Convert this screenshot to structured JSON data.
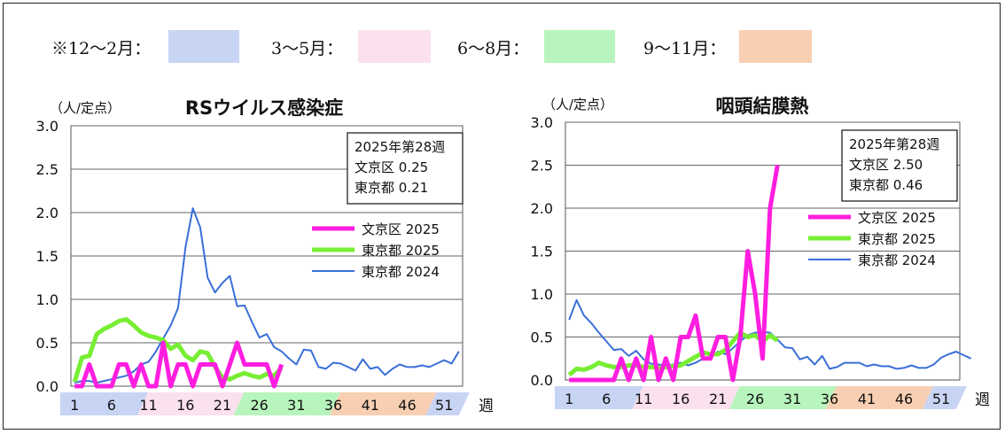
{
  "season_legend": [
    {
      "label": "※12～2月：",
      "color": "#c8d4f4"
    },
    {
      "label": "3～5月：",
      "color": "#fbe0ee"
    },
    {
      "label": "6～8月：",
      "color": "#b8f5bc"
    },
    {
      "label": "9～11月：",
      "color": "#f8cfb2"
    }
  ],
  "colors": {
    "bunkyo_2025": "#ff1ee0",
    "tokyo_2025": "#77ee33",
    "tokyo_2024": "#3a6fd8",
    "season_winter": "#c8d4f4",
    "season_spring": "#fbe0ee",
    "season_summer": "#b8f5bc",
    "season_autumn": "#f8cfb2"
  },
  "week_unit": "週",
  "week_ticks": [
    "1",
    "6",
    "11",
    "16",
    "21",
    "26",
    "31",
    "36",
    "41",
    "46",
    "51"
  ],
  "chart_data": [
    {
      "type": "line",
      "title": "RSウイルス感染症",
      "ylabel": "（人/定点）",
      "xlabel": "週",
      "yticks": [
        "0.0",
        "0.5",
        "1.0",
        "1.5",
        "2.0",
        "2.5",
        "3.0"
      ],
      "ylim": [
        0,
        3
      ],
      "grid": true,
      "legend_position": "right",
      "info_box": {
        "line1": "2025年第28週",
        "bunkyo": "文京区  0.25",
        "tokyo": "東京都  0.21"
      },
      "series": [
        {
          "name": "文京区 2025",
          "x_start": 1,
          "values": [
            0,
            0,
            0.25,
            0,
            0,
            0,
            0.25,
            0.25,
            0,
            0.25,
            0,
            0,
            0.5,
            0,
            0.25,
            0.25,
            0,
            0.25,
            0.25,
            0.25,
            0,
            0.25,
            0.5,
            0.25,
            0.25,
            0.25,
            0.25,
            0,
            0.25
          ]
        },
        {
          "name": "東京都 2025",
          "x_start": 1,
          "values": [
            0.05,
            0.33,
            0.35,
            0.6,
            0.66,
            0.7,
            0.75,
            0.77,
            0.7,
            0.62,
            0.58,
            0.56,
            0.53,
            0.43,
            0.48,
            0.35,
            0.3,
            0.4,
            0.38,
            0.22,
            0.1,
            0.08,
            0.12,
            0.15,
            0.12,
            0.1,
            0.14,
            0.12,
            0.21
          ]
        },
        {
          "name": "東京都 2024",
          "x_start": 1,
          "values": [
            0.04,
            0.06,
            0.06,
            0.04,
            0.06,
            0.08,
            0.1,
            0.12,
            0.17,
            0.25,
            0.28,
            0.4,
            0.55,
            0.7,
            0.9,
            1.6,
            2.05,
            1.83,
            1.25,
            1.08,
            1.19,
            1.27,
            0.92,
            0.93,
            0.74,
            0.56,
            0.6,
            0.45,
            0.4,
            0.32,
            0.25,
            0.42,
            0.41,
            0.22,
            0.2,
            0.27,
            0.26,
            0.22,
            0.18,
            0.31,
            0.2,
            0.22,
            0.13,
            0.2,
            0.25,
            0.22,
            0.22,
            0.24,
            0.22,
            0.26,
            0.3,
            0.26,
            0.4
          ]
        }
      ]
    },
    {
      "type": "line",
      "title": "咽頭結膜熱",
      "ylabel": "（人/定点）",
      "xlabel": "週",
      "yticks": [
        "0.0",
        "0.5",
        "1.0",
        "1.5",
        "2.0",
        "2.5",
        "3.0"
      ],
      "ylim": [
        0,
        3
      ],
      "grid": true,
      "legend_position": "right",
      "info_box": {
        "line1": "2025年第28週",
        "bunkyo": "文京区  2.50",
        "tokyo": "東京都  0.46"
      },
      "series": [
        {
          "name": "文京区 2025",
          "x_start": 1,
          "values": [
            0,
            0,
            0,
            0,
            0,
            0,
            0,
            0.25,
            0,
            0.25,
            0,
            0.5,
            0,
            0.25,
            0,
            0.5,
            0.5,
            0.75,
            0.25,
            0.25,
            0.5,
            0.5,
            0,
            0.5,
            1.5,
            1,
            0.25,
            2,
            2.5
          ]
        },
        {
          "name": "東京都 2025",
          "x_start": 1,
          "values": [
            0.06,
            0.13,
            0.12,
            0.15,
            0.2,
            0.17,
            0.15,
            0.15,
            0.17,
            0.17,
            0.15,
            0.15,
            0.14,
            0.15,
            0.16,
            0.17,
            0.22,
            0.27,
            0.32,
            0.3,
            0.3,
            0.35,
            0.45,
            0.55,
            0.5,
            0.52,
            0.45,
            0.52,
            0.46
          ]
        },
        {
          "name": "東京都 2024",
          "x_start": 1,
          "values": [
            0.7,
            0.93,
            0.75,
            0.66,
            0.55,
            0.45,
            0.35,
            0.36,
            0.28,
            0.34,
            0.24,
            0.19,
            0.18,
            0.17,
            0.18,
            0.2,
            0.17,
            0.2,
            0.25,
            0.26,
            0.33,
            0.3,
            0.37,
            0.45,
            0.52,
            0.55,
            0.56,
            0.55,
            0.47,
            0.38,
            0.37,
            0.24,
            0.27,
            0.18,
            0.28,
            0.13,
            0.15,
            0.2,
            0.2,
            0.2,
            0.16,
            0.18,
            0.16,
            0.16,
            0.13,
            0.14,
            0.17,
            0.14,
            0.14,
            0.18,
            0.26,
            0.3,
            0.33,
            0.29,
            0.25
          ]
        }
      ]
    }
  ]
}
